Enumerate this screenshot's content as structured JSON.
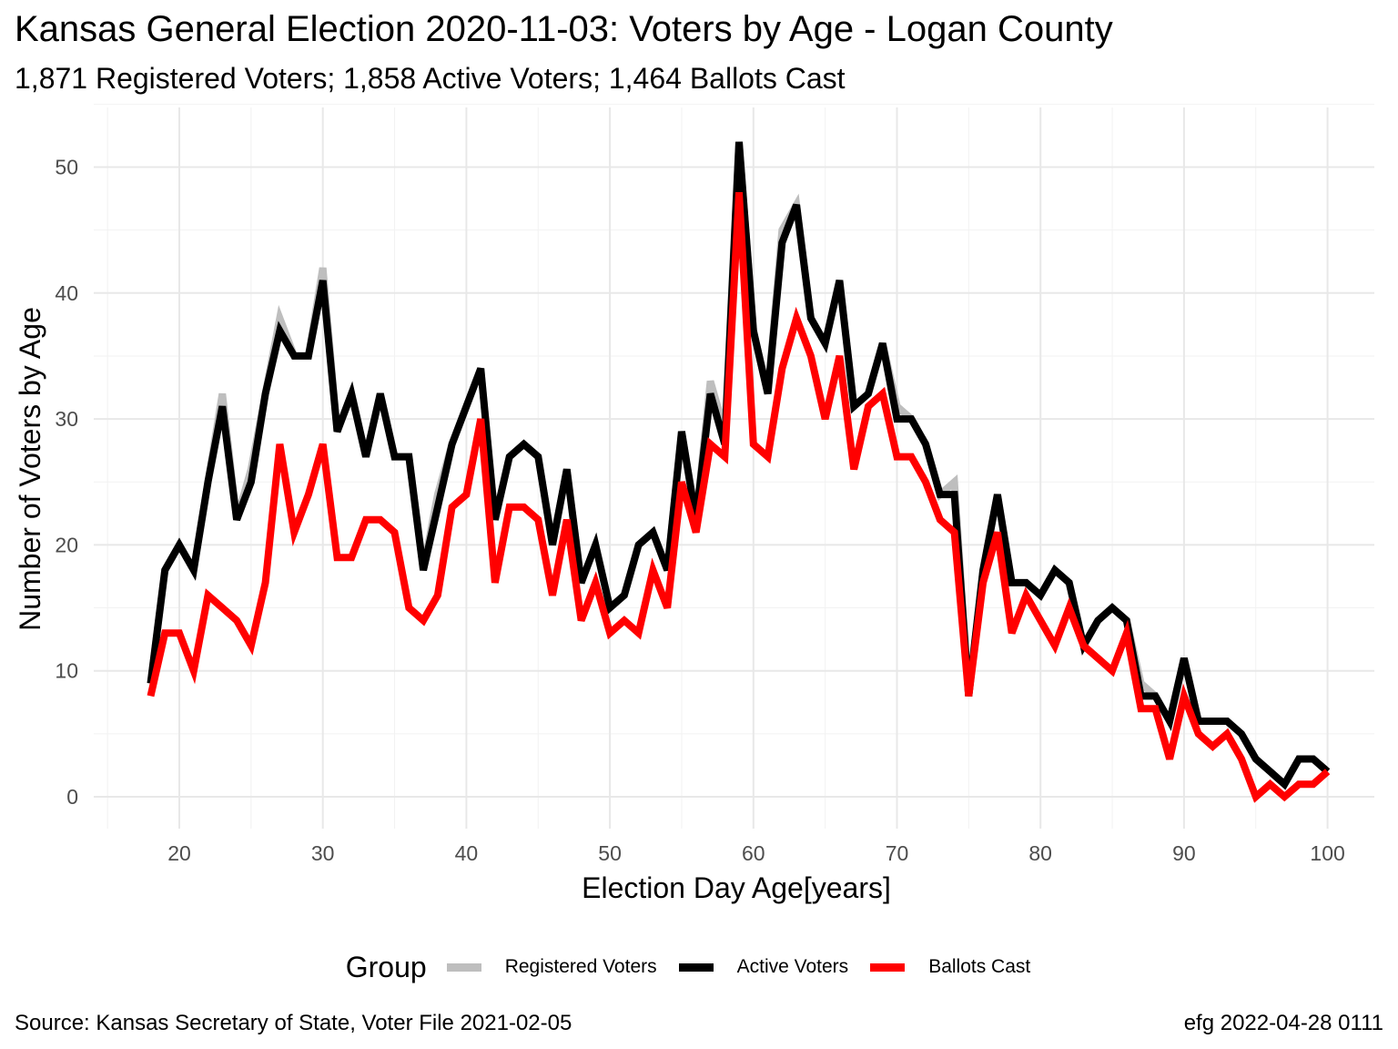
{
  "chart_data": {
    "type": "line",
    "title": "Kansas General Election 2020-11-03:  Voters by Age - Logan County",
    "subtitle": "1,871 Registered Voters; 1,858 Active Voters; 1,464 Ballots Cast",
    "xlabel": "Election Day Age[years]",
    "ylabel": "Number of Voters by Age",
    "xlim": [
      18,
      100
    ],
    "ylim": [
      0,
      52
    ],
    "x_ticks": [
      20,
      30,
      40,
      50,
      60,
      70,
      80,
      90,
      100
    ],
    "y_ticks": [
      0,
      10,
      20,
      30,
      40,
      50
    ],
    "grid": true,
    "legend_title": "Group",
    "legend_position": "bottom",
    "x": [
      18,
      19,
      20,
      21,
      22,
      23,
      24,
      25,
      26,
      27,
      28,
      29,
      30,
      31,
      32,
      33,
      34,
      35,
      36,
      37,
      38,
      39,
      40,
      41,
      42,
      43,
      44,
      45,
      46,
      47,
      48,
      49,
      50,
      51,
      52,
      53,
      54,
      55,
      56,
      57,
      58,
      59,
      60,
      61,
      62,
      63,
      64,
      65,
      66,
      67,
      68,
      69,
      70,
      71,
      72,
      73,
      74,
      75,
      76,
      77,
      78,
      79,
      80,
      81,
      82,
      83,
      84,
      85,
      86,
      87,
      88,
      89,
      90,
      91,
      92,
      93,
      94,
      95,
      96,
      97,
      98,
      99,
      100
    ],
    "series": [
      {
        "name": "Registered Voters",
        "color": "#bebebe",
        "values": [
          9,
          18,
          20,
          18,
          25,
          32,
          22,
          26,
          32,
          38,
          35,
          35,
          42,
          29,
          32,
          27,
          32,
          27,
          27,
          18,
          24,
          28,
          31,
          34,
          22,
          27,
          28,
          27,
          20,
          26,
          17,
          20,
          15,
          16,
          20,
          21,
          18,
          29,
          22,
          33,
          29,
          52,
          37,
          32,
          45,
          47,
          38,
          36,
          41,
          31,
          32,
          36,
          31,
          30,
          28,
          24,
          25,
          8,
          18,
          24,
          17,
          17,
          16,
          18,
          17,
          12,
          14,
          15,
          14,
          9,
          8,
          6,
          11,
          6,
          6,
          6,
          5,
          3,
          2,
          1,
          3,
          3,
          2
        ]
      },
      {
        "name": "Active Voters",
        "color": "#000000",
        "values": [
          9,
          18,
          20,
          18,
          25,
          31,
          22,
          25,
          32,
          37,
          35,
          35,
          41,
          29,
          32,
          27,
          32,
          27,
          27,
          18,
          23,
          28,
          31,
          34,
          22,
          27,
          28,
          27,
          20,
          26,
          17,
          20,
          15,
          16,
          20,
          21,
          18,
          29,
          22,
          32,
          28,
          52,
          37,
          32,
          44,
          47,
          38,
          36,
          41,
          31,
          32,
          36,
          30,
          30,
          28,
          24,
          24,
          8,
          18,
          24,
          17,
          17,
          16,
          18,
          17,
          12,
          14,
          15,
          14,
          8,
          8,
          6,
          11,
          6,
          6,
          6,
          5,
          3,
          2,
          1,
          3,
          3,
          2
        ]
      },
      {
        "name": "Ballots Cast",
        "color": "#ff0000",
        "values": [
          8,
          13,
          13,
          10,
          16,
          15,
          14,
          12,
          17,
          28,
          21,
          24,
          28,
          19,
          19,
          22,
          22,
          21,
          15,
          14,
          16,
          23,
          24,
          30,
          17,
          23,
          23,
          22,
          16,
          22,
          14,
          17,
          13,
          14,
          13,
          18,
          15,
          25,
          21,
          28,
          27,
          48,
          28,
          27,
          34,
          38,
          35,
          30,
          35,
          26,
          31,
          32,
          27,
          27,
          25,
          22,
          21,
          8,
          17,
          21,
          13,
          16,
          14,
          12,
          15,
          12,
          11,
          10,
          13,
          7,
          7,
          3,
          8,
          5,
          4,
          5,
          3,
          0,
          1,
          0,
          1,
          1,
          2
        ]
      }
    ]
  },
  "caption_left": "Source:  Kansas Secretary of State, Voter File  2021-02-05",
  "caption_right": "efg 2022-04-28 0111"
}
